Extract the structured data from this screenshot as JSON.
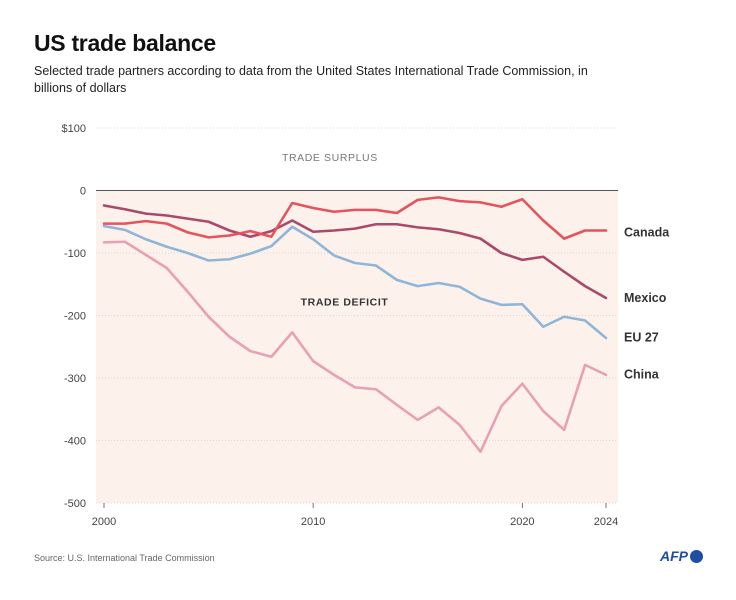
{
  "header": {
    "title": "US trade balance",
    "subtitle": "Selected trade partners according to data from the United States International Trade Commission, in billions of dollars"
  },
  "footer": {
    "source": "Source: U.S. International Trade Commission",
    "logo_text": "AFP"
  },
  "colors": {
    "deficit_fill": "#fdf1ec",
    "grid": "#cccccc",
    "zero_line": "#555555",
    "canada": "#e4545c",
    "mexico": "#a74a6c",
    "eu27": "#8fb6d8",
    "china": "#e8a0b4",
    "logo": "#1f4fa0"
  },
  "chart_data": {
    "type": "line",
    "title": "US trade balance",
    "subtitle": "Selected trade partners according to data from the United States International Trade Commission, in billions of dollars",
    "xlabel": "",
    "ylabel": "",
    "x": [
      2000,
      2001,
      2002,
      2003,
      2004,
      2005,
      2006,
      2007,
      2008,
      2009,
      2010,
      2011,
      2012,
      2013,
      2014,
      2015,
      2016,
      2017,
      2018,
      2019,
      2020,
      2021,
      2022,
      2023,
      2024
    ],
    "xlim": [
      2000,
      2024
    ],
    "ylim": [
      -500,
      100
    ],
    "x_ticks": [
      2000,
      2010,
      2020,
      2024
    ],
    "y_ticks": [
      100,
      0,
      -100,
      -200,
      -300,
      -400,
      -500
    ],
    "y_tick_labels": [
      "$100",
      "0",
      "-100",
      "-200",
      "-300",
      "-400",
      "-500"
    ],
    "grid": true,
    "legend": "inline labels at right end of lines",
    "annotations": {
      "surplus": "TRADE SURPLUS",
      "deficit": "TRADE DEFICIT"
    },
    "series": [
      {
        "name": "Canada",
        "key": "canada",
        "values": [
          -53,
          -53,
          -49,
          -53,
          -67,
          -75,
          -72,
          -65,
          -74,
          -20,
          -28,
          -34,
          -31,
          -31,
          -36,
          -15,
          -11,
          -17,
          -19,
          -26,
          -14,
          -48,
          -77,
          -64,
          -64
        ]
      },
      {
        "name": "Mexico",
        "key": "mexico",
        "values": [
          -24,
          -30,
          -37,
          -40,
          -45,
          -50,
          -64,
          -74,
          -65,
          -48,
          -66,
          -64,
          -61,
          -54,
          -54,
          -59,
          -62,
          -68,
          -77,
          -100,
          -111,
          -106,
          -130,
          -153,
          -172
        ]
      },
      {
        "name": "EU 27",
        "key": "eu27",
        "values": [
          -57,
          -63,
          -78,
          -90,
          -100,
          -112,
          -110,
          -101,
          -89,
          -58,
          -78,
          -104,
          -116,
          -120,
          -143,
          -153,
          -148,
          -154,
          -173,
          -183,
          -182,
          -218,
          -202,
          -208,
          -236
        ]
      },
      {
        "name": "China",
        "key": "china",
        "values": [
          -83,
          -82,
          -103,
          -124,
          -162,
          -202,
          -234,
          -257,
          -266,
          -227,
          -273,
          -295,
          -315,
          -318,
          -343,
          -367,
          -347,
          -375,
          -418,
          -345,
          -309,
          -353,
          -383,
          -279,
          -295
        ]
      }
    ]
  }
}
